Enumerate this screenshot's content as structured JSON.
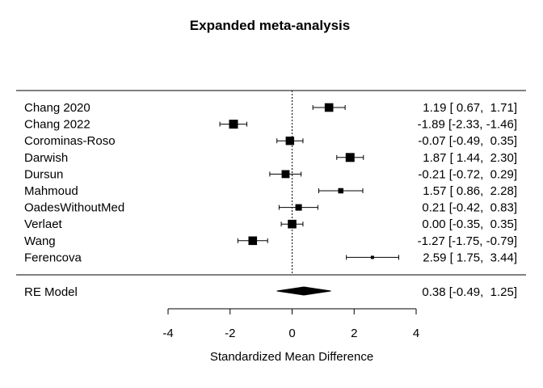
{
  "chart_data": {
    "type": "forest",
    "title": "Expanded meta-analysis",
    "xlabel": "Standardized Mean Difference",
    "xlim": [
      -4,
      4
    ],
    "xticks": [
      "-4",
      "-2",
      "0",
      "2",
      "4"
    ],
    "reference_line": 0,
    "studies": [
      {
        "name": "Chang 2020",
        "estimate": 1.19,
        "lower": 0.67,
        "upper": 1.71,
        "weight": 10.5,
        "ci_text": "1.19 [ 0.67,  1.71]"
      },
      {
        "name": "Chang 2022",
        "estimate": -1.89,
        "lower": -2.33,
        "upper": -1.46,
        "weight": 11.3,
        "ci_text": "-1.89 [-2.33, -1.46]"
      },
      {
        "name": "Corominas-Roso",
        "estimate": -0.07,
        "lower": -0.49,
        "upper": 0.35,
        "weight": 10.2,
        "ci_text": "-0.07 [-0.49,  0.35]"
      },
      {
        "name": "Darwish",
        "estimate": 1.87,
        "lower": 1.44,
        "upper": 2.3,
        "weight": 11.3,
        "ci_text": "1.87 [ 1.44,  2.30]"
      },
      {
        "name": "Dursun",
        "estimate": -0.21,
        "lower": -0.72,
        "upper": 0.29,
        "weight": 9.0,
        "ci_text": "-0.21 [-0.72,  0.29]"
      },
      {
        "name": "Mahmoud",
        "estimate": 1.57,
        "lower": 0.86,
        "upper": 2.28,
        "weight": 4.0,
        "ci_text": "1.57 [ 0.86,  2.28]"
      },
      {
        "name": "OadesWithoutMed",
        "estimate": 0.21,
        "lower": -0.42,
        "upper": 0.83,
        "weight": 6.0,
        "ci_text": "0.21 [-0.42,  0.83]"
      },
      {
        "name": "Verlaet",
        "estimate": 0.0,
        "lower": -0.35,
        "upper": 0.35,
        "weight": 10.5,
        "ci_text": "0.00 [-0.35,  0.35]"
      },
      {
        "name": "Wang",
        "estimate": -1.27,
        "lower": -1.75,
        "upper": -0.79,
        "weight": 10.5,
        "ci_text": "-1.27 [-1.75, -0.79]"
      },
      {
        "name": "Ferencova",
        "estimate": 2.59,
        "lower": 1.75,
        "upper": 3.44,
        "weight": 1.4,
        "ci_text": "2.59 [ 1.75,  3.44]"
      }
    ],
    "summary": {
      "name": "RE Model",
      "estimate": 0.38,
      "lower": -0.49,
      "upper": 1.25,
      "ci_text": "0.38 [-0.49,  1.25]"
    }
  }
}
